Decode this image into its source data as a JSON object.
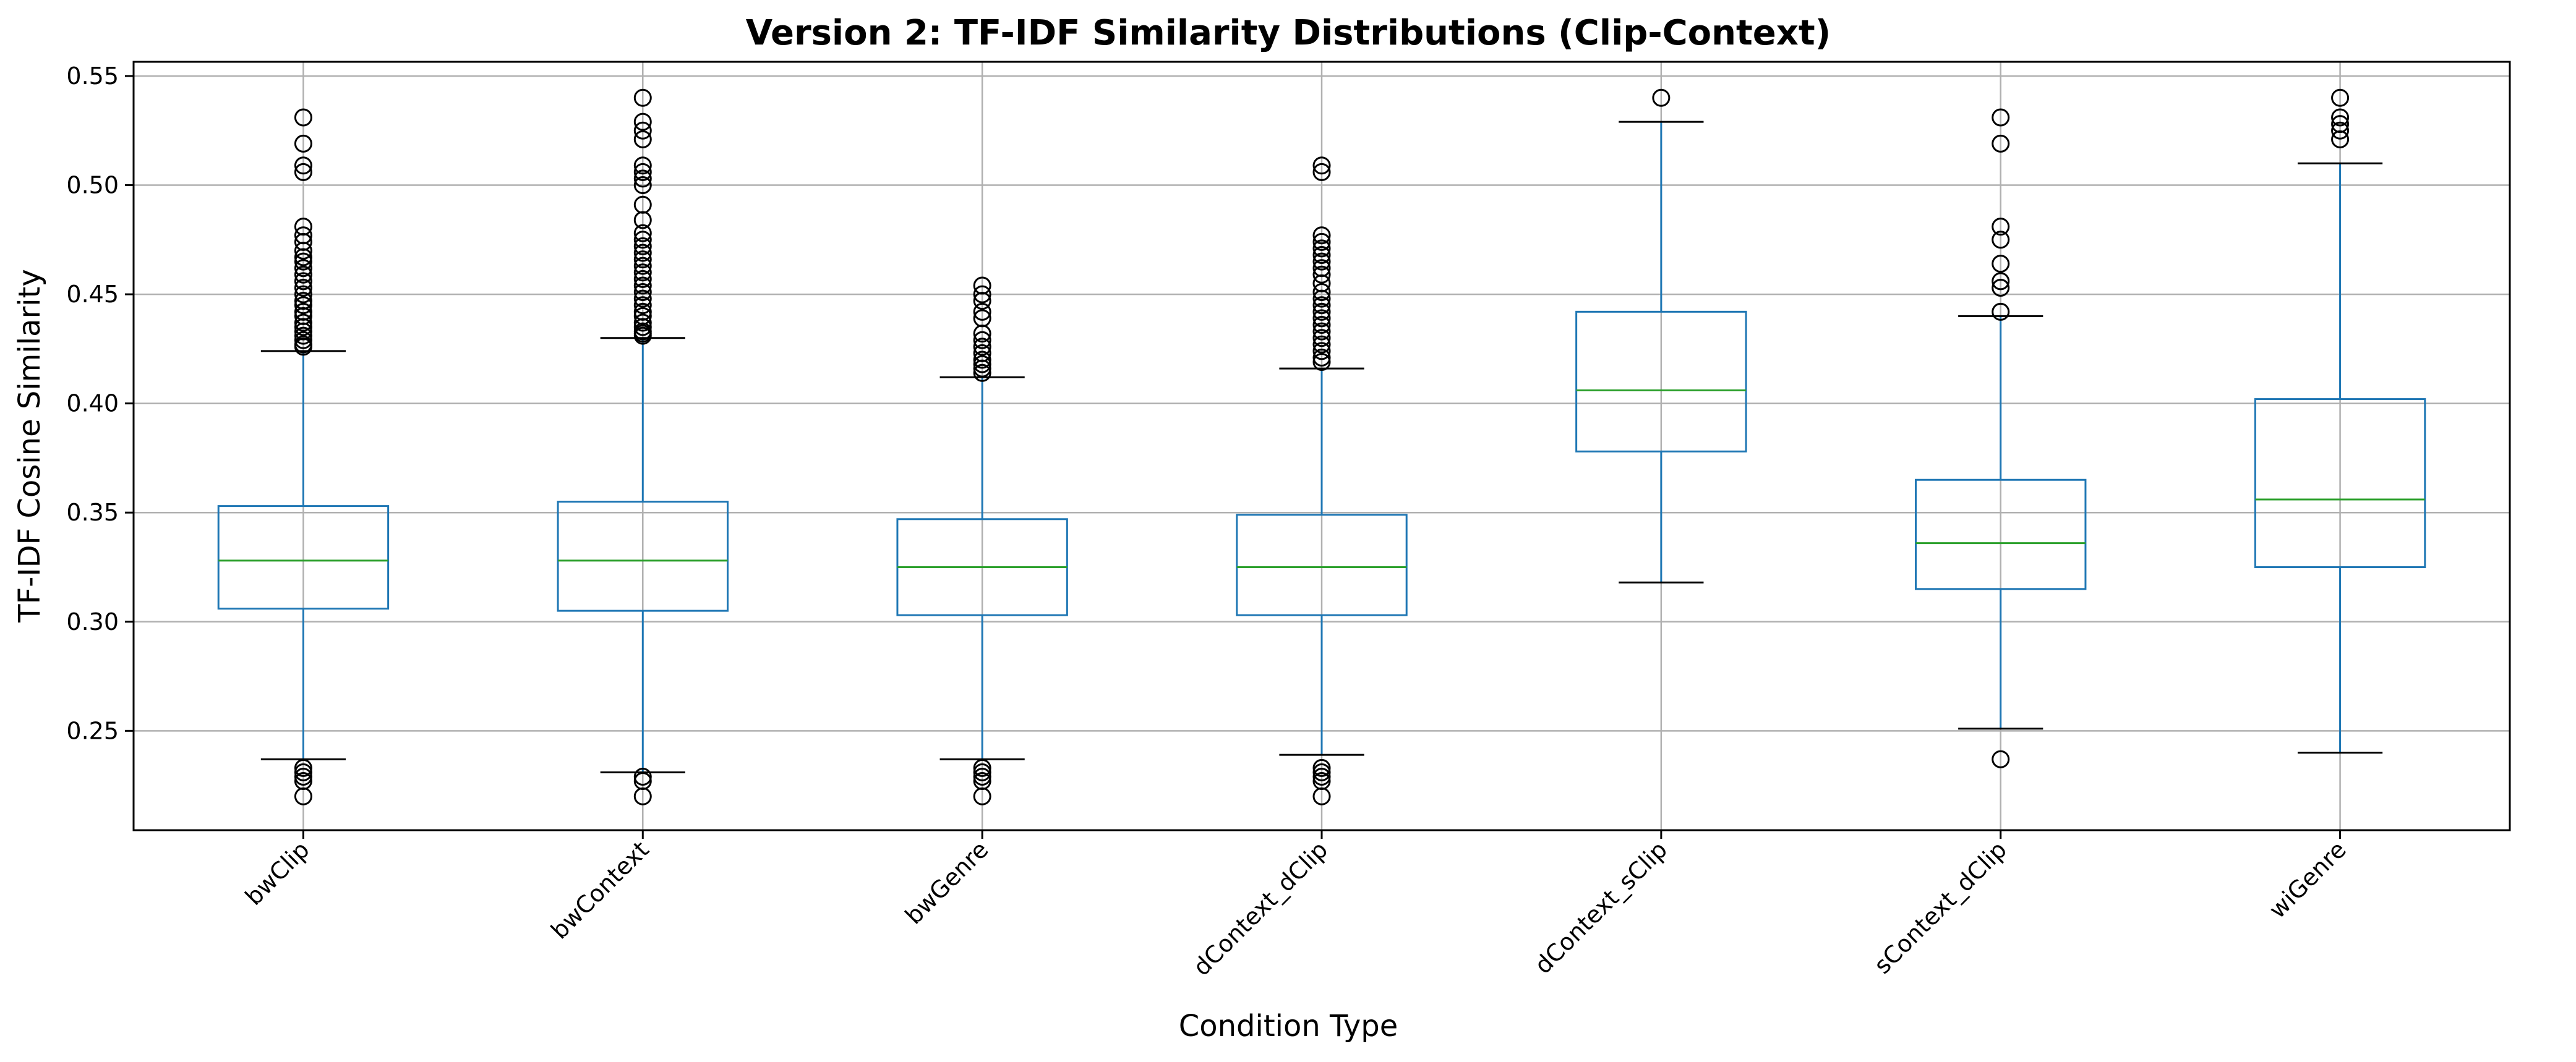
{
  "chart_data": {
    "type": "boxplot",
    "title": "Version 2: TF-IDF Similarity Distributions (Clip-Context)",
    "xlabel": "Condition Type",
    "ylabel": "TF-IDF Cosine Similarity",
    "ylim": [
      0.2045,
      0.5565
    ],
    "yticks": [
      "0.25",
      "0.30",
      "0.35",
      "0.40",
      "0.45",
      "0.50",
      "0.55"
    ],
    "grid": true,
    "colors": {
      "box": "#1f77b4",
      "median": "#2ca02c",
      "whisker": "#1f77b4",
      "cap": "#000000",
      "flier": "#000000",
      "grid": "#b0b0b0"
    },
    "categories": [
      "bwClip",
      "bwContext",
      "bwGenre",
      "dContext_dClip",
      "dContext_sClip",
      "sContext_dClip",
      "wiGenre"
    ],
    "boxes": [
      {
        "q1": 0.306,
        "median": 0.328,
        "q3": 0.353,
        "whislo": 0.237,
        "whishi": 0.424,
        "fliers": [
          0.531,
          0.519,
          0.509,
          0.506,
          0.481,
          0.477,
          0.474,
          0.47,
          0.467,
          0.465,
          0.462,
          0.459,
          0.456,
          0.453,
          0.45,
          0.447,
          0.445,
          0.442,
          0.44,
          0.437,
          0.435,
          0.433,
          0.431,
          0.429,
          0.427,
          0.426,
          0.233,
          0.231,
          0.229,
          0.227,
          0.22
        ]
      },
      {
        "q1": 0.305,
        "median": 0.328,
        "q3": 0.355,
        "whislo": 0.231,
        "whishi": 0.43,
        "fliers": [
          0.54,
          0.529,
          0.525,
          0.521,
          0.509,
          0.506,
          0.503,
          0.5,
          0.491,
          0.484,
          0.478,
          0.475,
          0.472,
          0.469,
          0.466,
          0.463,
          0.46,
          0.457,
          0.454,
          0.451,
          0.448,
          0.445,
          0.442,
          0.44,
          0.437,
          0.435,
          0.433,
          0.432,
          0.431,
          0.229,
          0.227,
          0.22
        ]
      },
      {
        "q1": 0.303,
        "median": 0.325,
        "q3": 0.347,
        "whislo": 0.237,
        "whishi": 0.412,
        "fliers": [
          0.454,
          0.45,
          0.447,
          0.442,
          0.439,
          0.432,
          0.429,
          0.426,
          0.423,
          0.42,
          0.418,
          0.416,
          0.414,
          0.233,
          0.231,
          0.229,
          0.227,
          0.22
        ]
      },
      {
        "q1": 0.303,
        "median": 0.325,
        "q3": 0.349,
        "whislo": 0.239,
        "whishi": 0.416,
        "fliers": [
          0.509,
          0.506,
          0.477,
          0.474,
          0.471,
          0.468,
          0.465,
          0.462,
          0.459,
          0.455,
          0.451,
          0.448,
          0.445,
          0.442,
          0.439,
          0.436,
          0.433,
          0.43,
          0.427,
          0.424,
          0.421,
          0.419,
          0.233,
          0.231,
          0.229,
          0.227,
          0.22
        ]
      },
      {
        "q1": 0.378,
        "median": 0.406,
        "q3": 0.442,
        "whislo": 0.318,
        "whishi": 0.529,
        "fliers": [
          0.54
        ]
      },
      {
        "q1": 0.315,
        "median": 0.336,
        "q3": 0.365,
        "whislo": 0.251,
        "whishi": 0.44,
        "fliers": [
          0.531,
          0.519,
          0.481,
          0.475,
          0.464,
          0.456,
          0.453,
          0.442,
          0.237
        ]
      },
      {
        "q1": 0.325,
        "median": 0.356,
        "q3": 0.402,
        "whislo": 0.24,
        "whishi": 0.51,
        "fliers": [
          0.54,
          0.531,
          0.528,
          0.525,
          0.521
        ]
      }
    ]
  }
}
